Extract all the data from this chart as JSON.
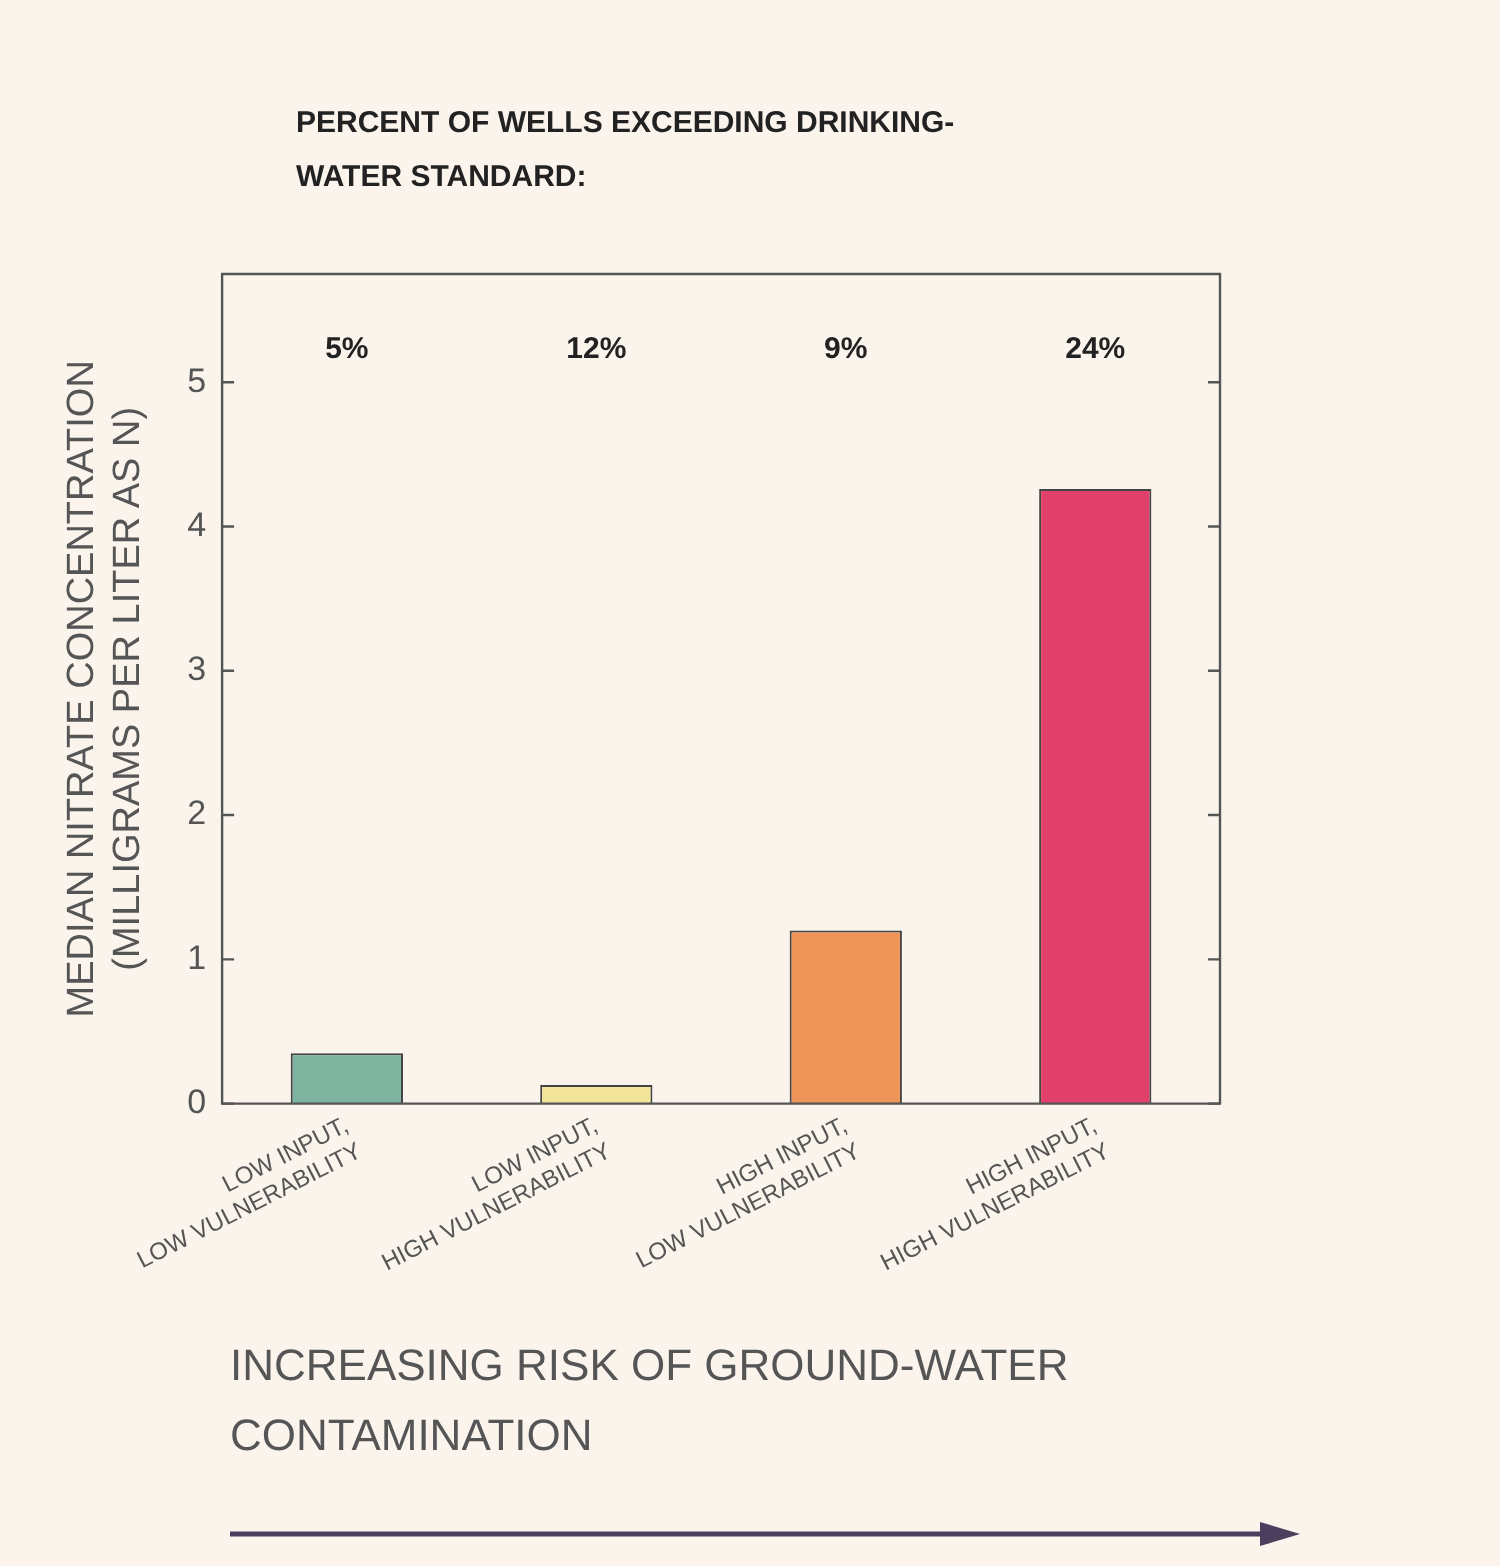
{
  "chart_data": {
    "type": "bar",
    "title": "PERCENT OF WELLS EXCEEDING DRINKING-\nWATER STANDARD:",
    "ylabel": "MEDIAN NITRATE CONCENTRATION\n(MILLIGRAMS PER LITER AS N)",
    "xlabel": "INCREASING RISK OF GROUND-WATER\nCONTAMINATION",
    "categories": [
      "LOW INPUT,\nLOW VULNERABILITY",
      "LOW INPUT,\nHIGH VULNERABILITY",
      "HIGH INPUT,\nLOW VULNERABILITY",
      "HIGH INPUT,\nHIGH VULNERABILITY"
    ],
    "values": [
      0.35,
      0.13,
      1.2,
      4.26
    ],
    "colors": [
      "#7fb5a0",
      "#f2e49a",
      "#f0955a",
      "#e0406a"
    ],
    "ylim": [
      0,
      5.75
    ],
    "yticks": [
      0,
      1,
      2,
      3,
      4,
      5
    ],
    "grid": false,
    "legend": false,
    "annotations": [
      "5%",
      "12%",
      "9%",
      "24%"
    ]
  }
}
